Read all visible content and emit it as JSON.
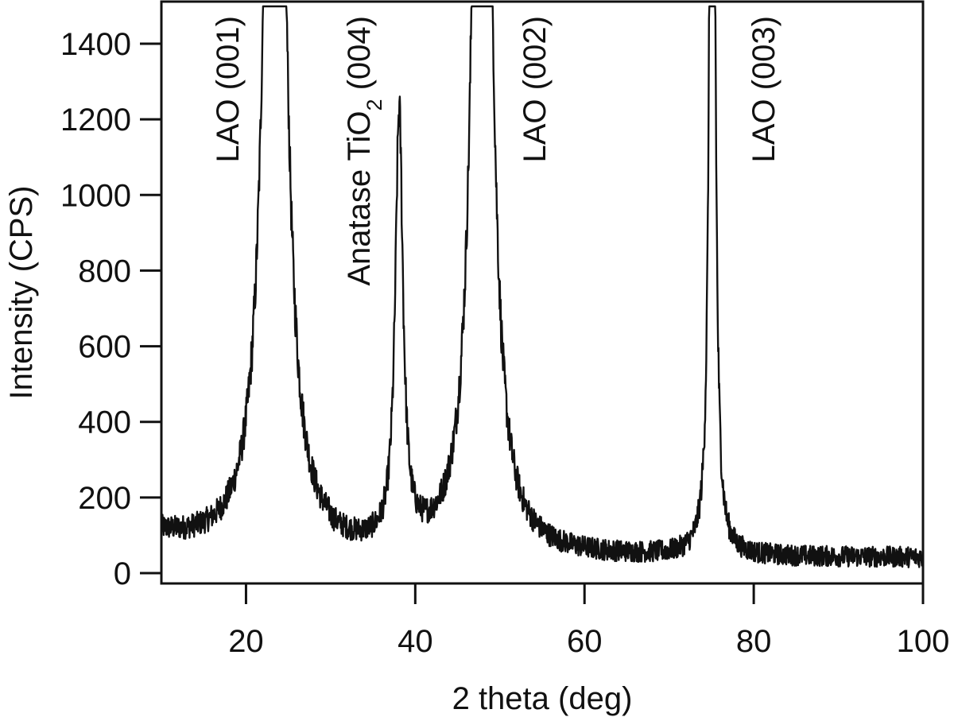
{
  "chart_data": {
    "type": "line",
    "title": "",
    "xlabel": "2 theta (deg)",
    "ylabel": "Intensity (CPS)",
    "xlim": [
      10,
      100
    ],
    "ylim": [
      0,
      1500
    ],
    "x_ticks": [
      20,
      40,
      60,
      80,
      100
    ],
    "x_tick_labels": [
      "20",
      "40",
      "60",
      "80",
      "100"
    ],
    "y_ticks": [
      0,
      200,
      400,
      600,
      800,
      1000,
      1200,
      1400
    ],
    "y_tick_labels": [
      "0",
      "200",
      "400",
      "600",
      "800",
      "1000",
      "1200",
      "1400"
    ],
    "grid": false,
    "line_color": "#111111",
    "background_noise_cps": 40,
    "peaks": [
      {
        "x": 23.4,
        "label": "LAO (001)",
        "height_cps": 1500,
        "clipped": true
      },
      {
        "x": 38.1,
        "label_main": "Anatase TiO",
        "label_sub": "2",
        "label_tail": " (004)",
        "height_cps": 1130,
        "clipped": false
      },
      {
        "x": 47.9,
        "label": "LAO (002)",
        "height_cps": 1500,
        "clipped": true
      },
      {
        "x": 75.1,
        "label": "LAO (003)",
        "height_cps": 1500,
        "clipped": true
      }
    ]
  }
}
